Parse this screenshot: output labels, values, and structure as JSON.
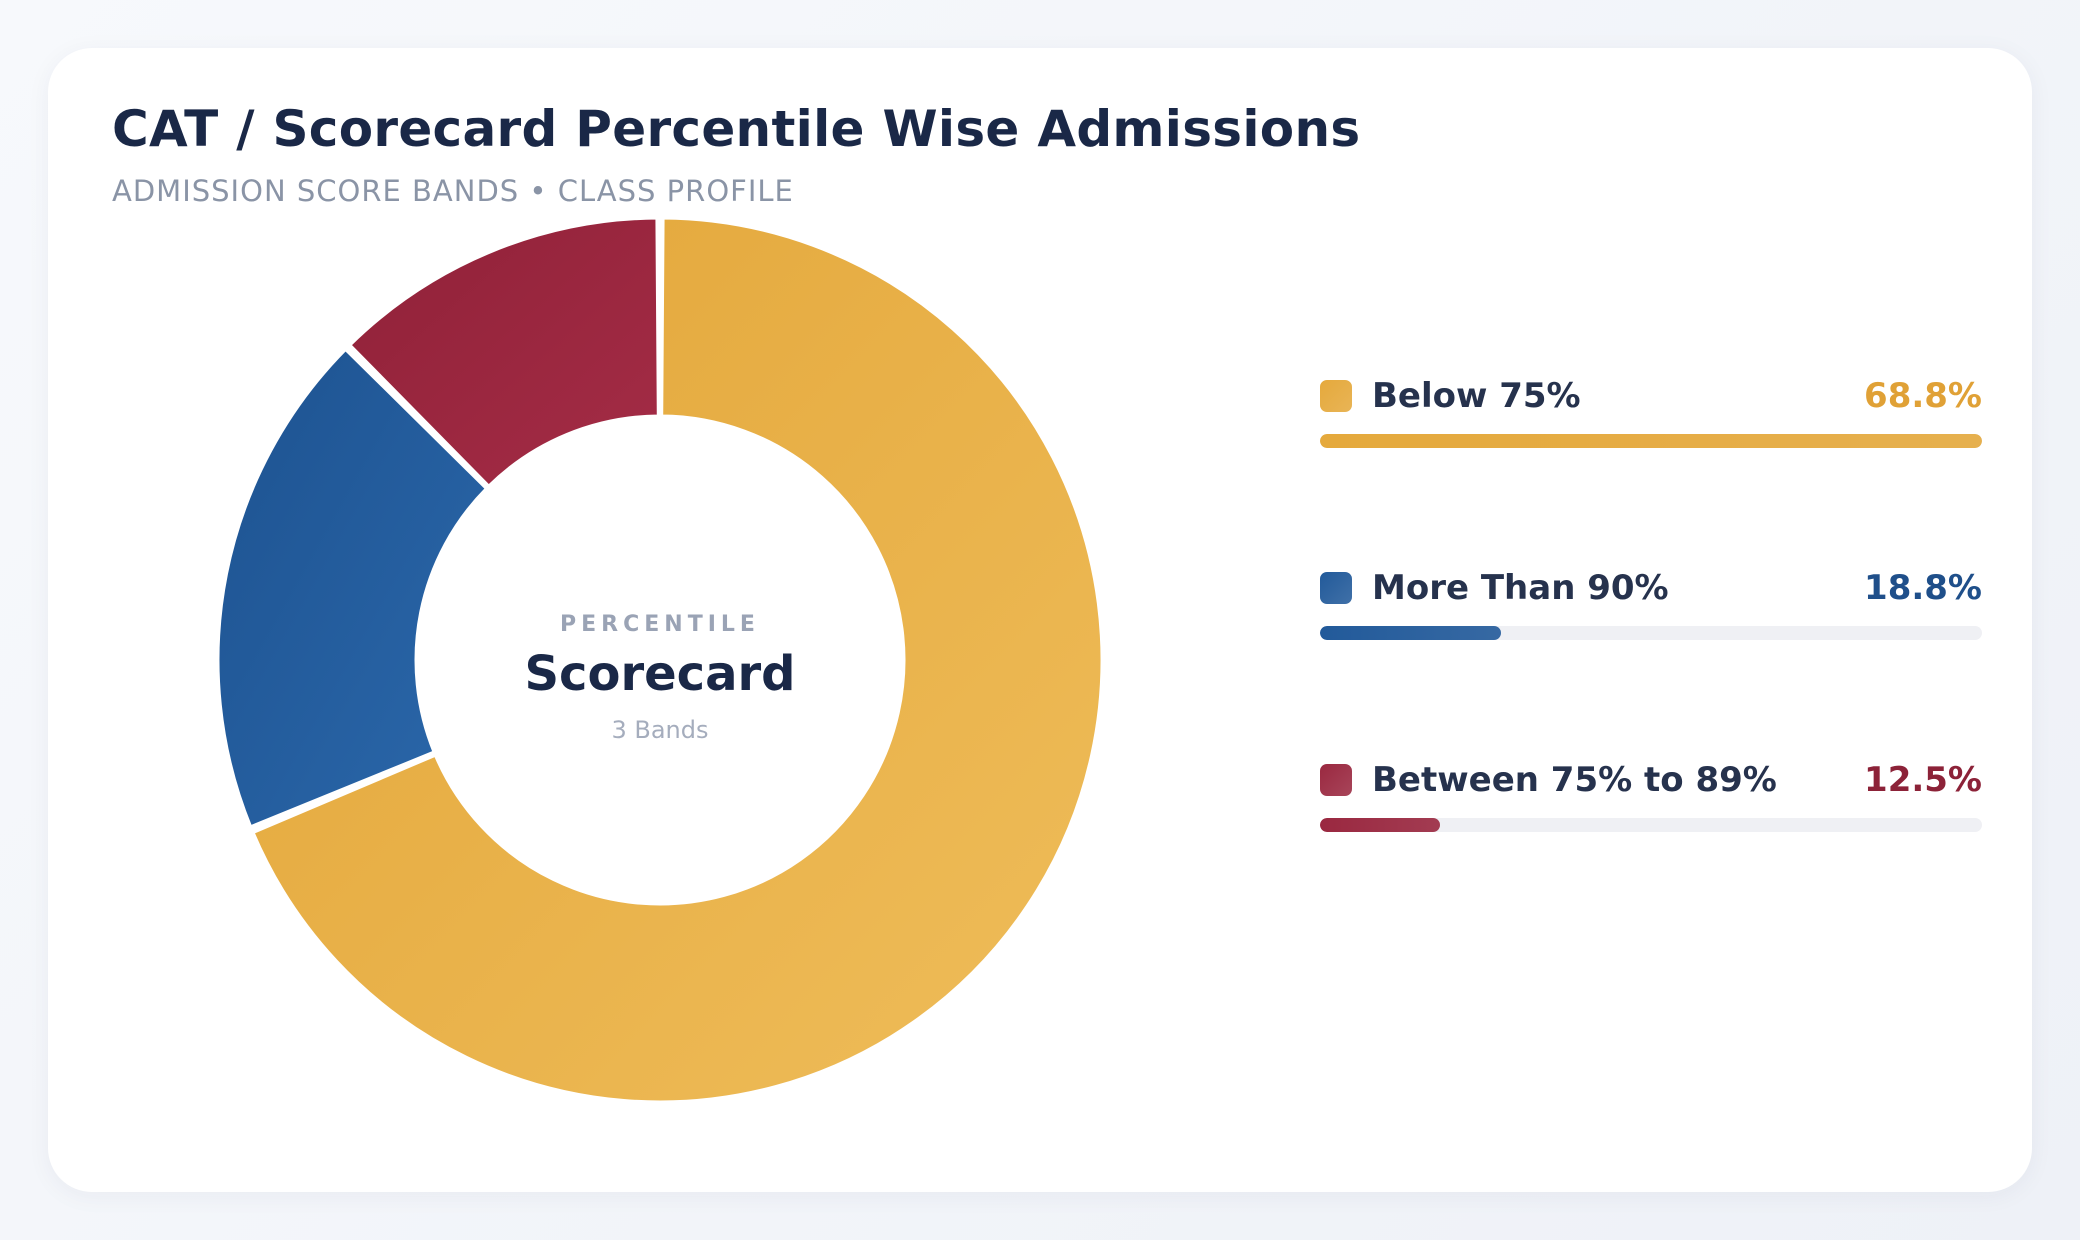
{
  "header": {
    "title": "CAT / Scorecard Percentile Wise Admissions",
    "subtitle": "ADMISSION SCORE BANDS • CLASS PROFILE"
  },
  "center": {
    "caption": "PERCENTILE",
    "label": "Scorecard",
    "sublabel": "3 Bands"
  },
  "chart_data": {
    "type": "pie",
    "title": "CAT / Scorecard Percentile Wise Admissions",
    "subtitle": "ADMISSION SCORE BANDS • CLASS PROFILE",
    "categories": [
      "Below 75%",
      "More Than 90%",
      "Between 75% to 89%"
    ],
    "values": [
      68.8,
      18.8,
      12.5
    ],
    "value_labels": [
      "68.8%",
      "18.8%",
      "12.5%"
    ],
    "colors": [
      "#e5a93c",
      "#225a9a",
      "#9a2840"
    ],
    "legend_placement": "right",
    "donut": true
  },
  "legend": [
    {
      "label": "Below 75%",
      "value": "68.8%",
      "percent": 68.8,
      "color": "#e5a93c",
      "value_color": "#e0a136"
    },
    {
      "label": "More Than 90%",
      "value": "18.8%",
      "percent": 18.8,
      "color": "#225a9a",
      "value_color": "#1f4f8a"
    },
    {
      "label": "Between 75% to 89%",
      "value": "12.5%",
      "percent": 12.5,
      "color": "#9a2840",
      "value_color": "#8c2238"
    }
  ]
}
